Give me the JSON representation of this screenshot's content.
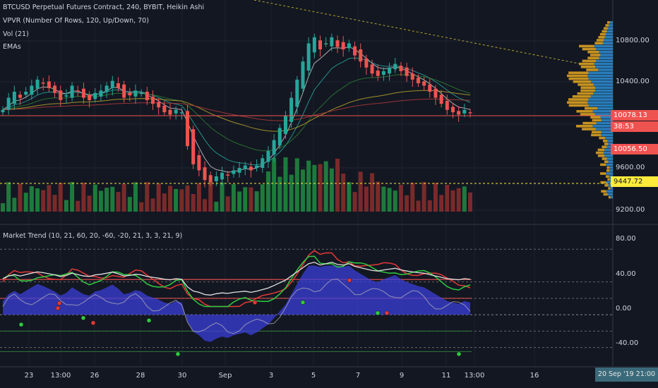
{
  "legends": {
    "symbol": "BTCUSD Perpetual Futures Contract, 240, BYBIT, Heikin Ashi",
    "vpvr": "VPVR (Number Of Rows, 120, Up/Down, 70)",
    "vol": "Vol (21)",
    "emas": "EMAs",
    "market_trend": "Market Trend (10, 21, 60, 20, -60, -20, 21, 3, 3, 21, 9)"
  },
  "price_axis": {
    "labels": [
      "10800.00",
      "10400.00",
      "9600.00",
      "9200.00"
    ],
    "osc_labels": [
      "80.00",
      "40.00",
      "0.00",
      "-40.00"
    ],
    "tags": {
      "current": "10078.13",
      "countdown": "38:53",
      "second": "10056.50",
      "dotted": "9447.72"
    }
  },
  "time_axis": {
    "labels": [
      "23",
      "13:00",
      "26",
      "28",
      "30",
      "Sep",
      "3",
      "5",
      "7",
      "9",
      "11",
      "13:00",
      "16"
    ],
    "badge": "20 Sep '19  21:00"
  },
  "colors": {
    "background": "#131722",
    "up": "#26a69a",
    "down": "#ef5350",
    "vol_up": "#1e7a3c",
    "vol_down": "#7a2a2a",
    "vpvr_up": "#2d8fd5",
    "vpvr_down": "#e6a820",
    "osc_fill": "#3b3fd9",
    "current_tag": "#ef5350",
    "dotted_tag": "#ffeb3b"
  },
  "chart_data": {
    "type": "candlestick",
    "price_ylim": [
      9200,
      10950
    ],
    "oscillator_ylim": [
      -55,
      100
    ],
    "price_close_estimate": [
      10100,
      10200,
      10250,
      10200,
      10250,
      10300,
      10350,
      10320,
      10280,
      10240,
      10180,
      10220,
      10300,
      10250,
      10200,
      10180,
      10240,
      10260,
      10300,
      10340,
      10280,
      10200,
      10220,
      10260,
      10240,
      10180,
      10150,
      10120,
      10080,
      10060,
      10100,
      10080,
      9800,
      9650,
      9600,
      9520,
      9500,
      9550,
      9580,
      9560,
      9600,
      9620,
      9640,
      9600,
      9640,
      9700,
      9760,
      9850,
      9950,
      10050,
      10200,
      10350,
      10500,
      10650,
      10700,
      10600,
      10650,
      10700,
      10620,
      10600,
      10650,
      10550,
      10500,
      10450,
      10400,
      10380,
      10420,
      10450,
      10480,
      10420,
      10380,
      10350,
      10320,
      10300,
      10250,
      10200,
      10150,
      10100,
      10080,
      10060,
      10100,
      10078
    ]
  }
}
